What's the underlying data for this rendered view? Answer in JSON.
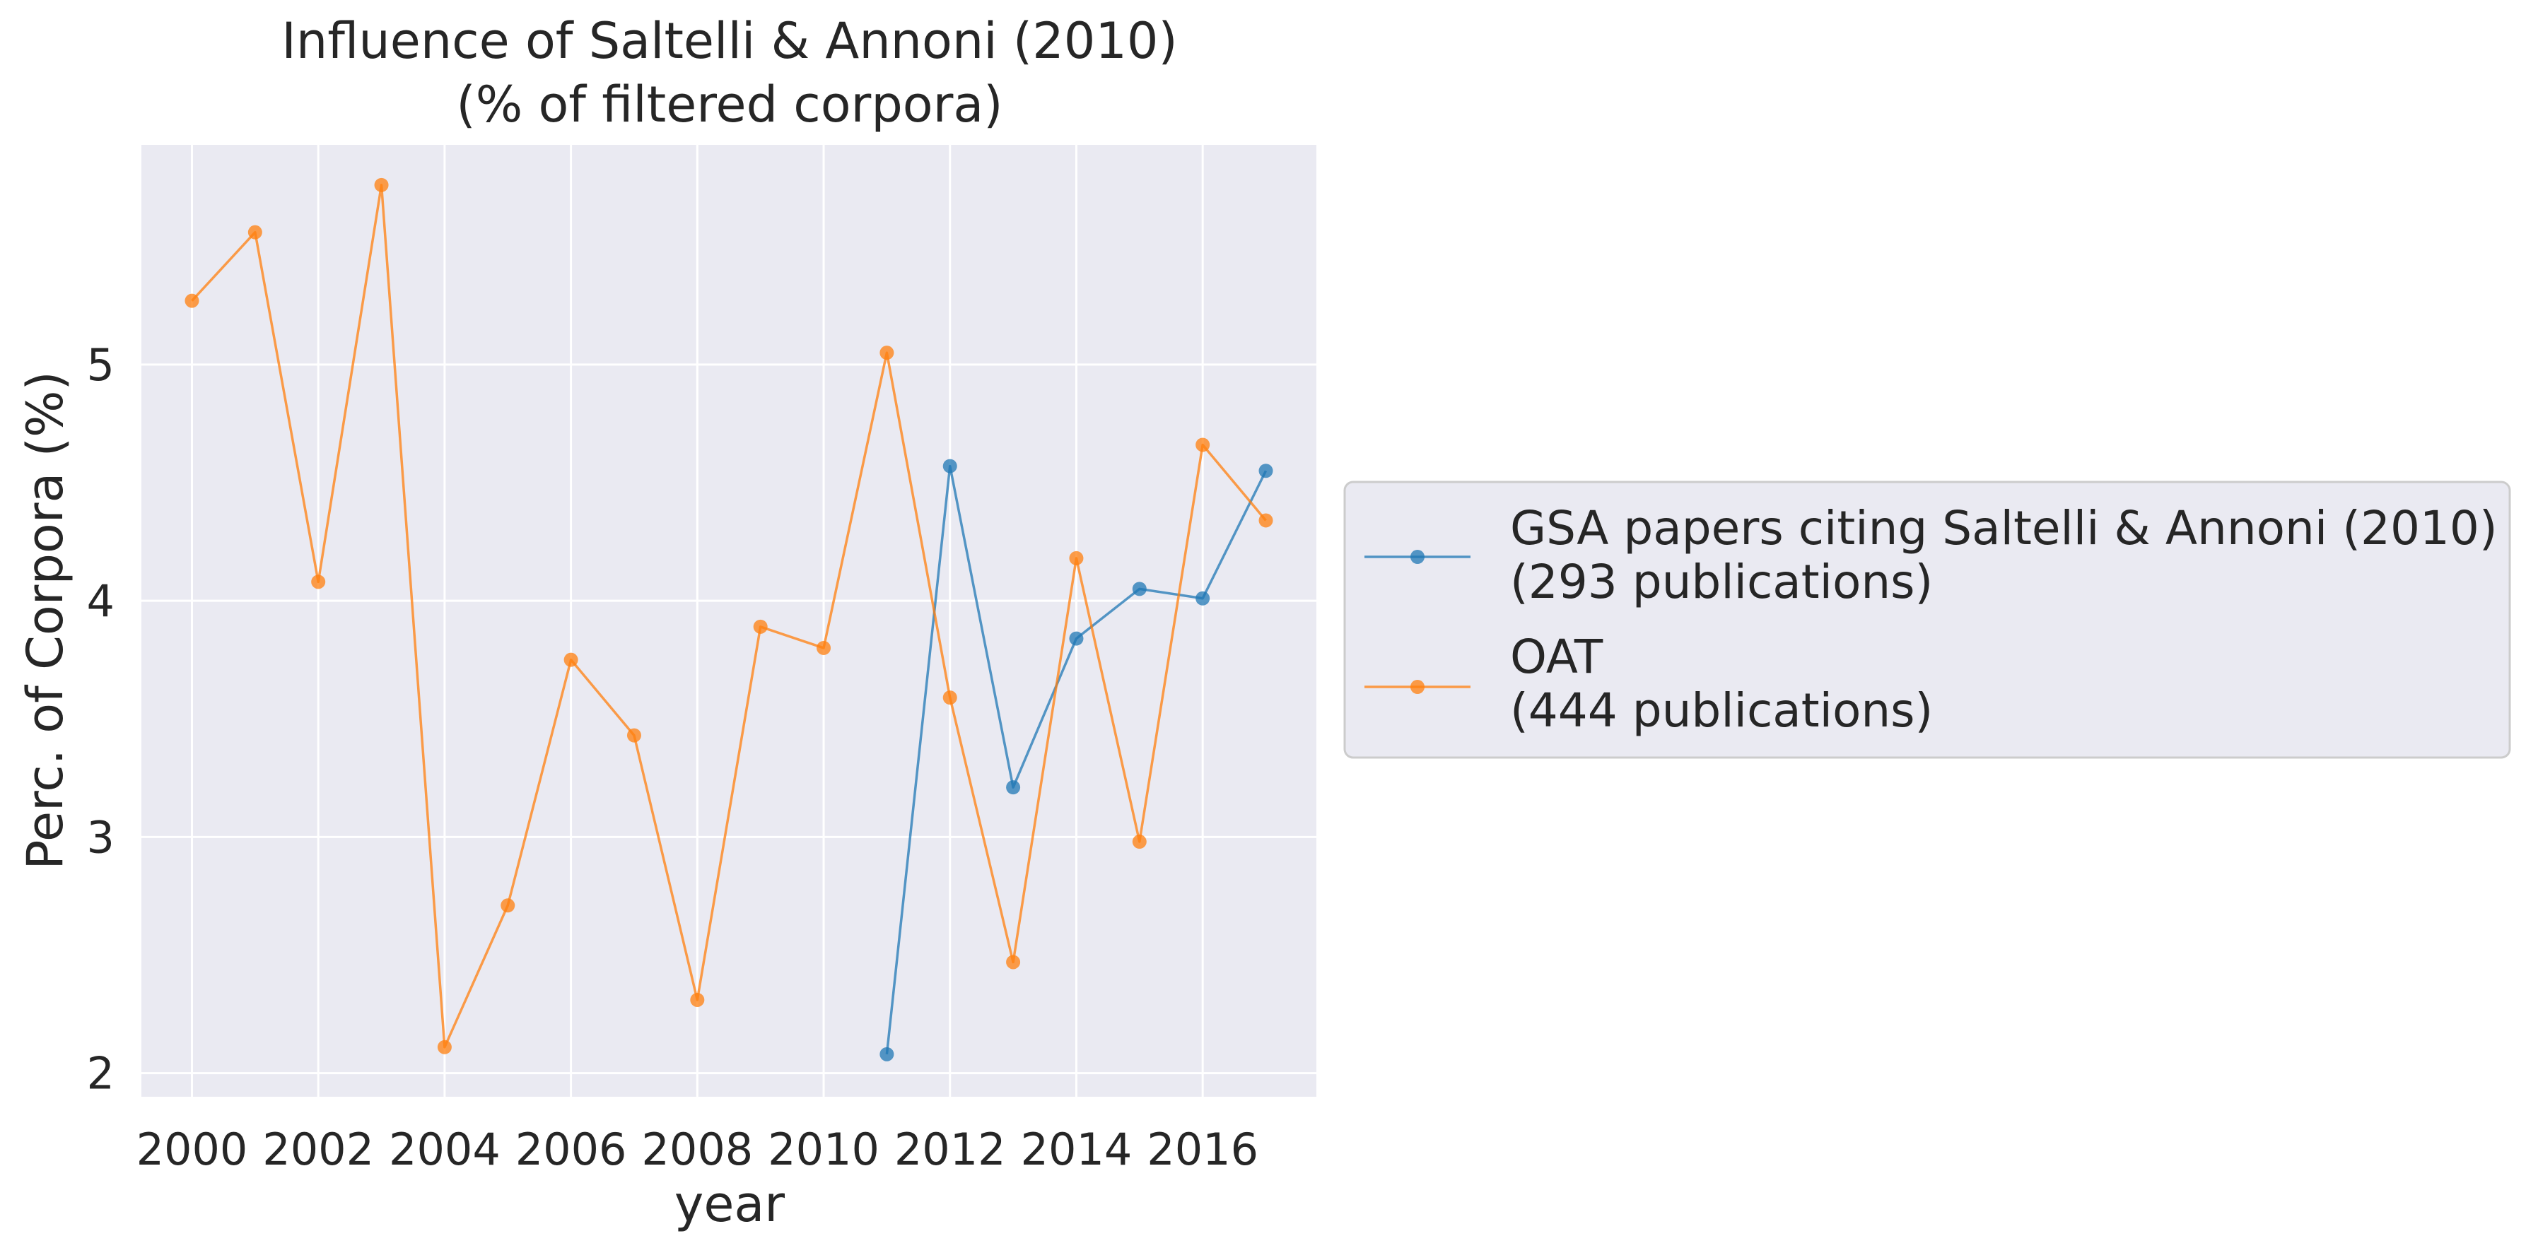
{
  "chart_data": {
    "type": "line",
    "title_line1": "Influence of Saltelli & Annoni (2010)",
    "title_line2": "(% of filtered corpora)",
    "xlabel": "year",
    "ylabel": "Perc. of Corpora (%)",
    "xlim": [
      1999.2,
      2017.8
    ],
    "ylim": [
      1.9,
      5.93
    ],
    "x_ticks": [
      2000,
      2002,
      2004,
      2006,
      2008,
      2010,
      2012,
      2014,
      2016
    ],
    "x_tick_labels": [
      "2000",
      "2002",
      "2004",
      "2006",
      "2008",
      "2010",
      "2012",
      "2014",
      "2016"
    ],
    "y_ticks": [
      2,
      3,
      4,
      5
    ],
    "y_tick_labels": [
      "2",
      "3",
      "4",
      "5"
    ],
    "grid": true,
    "legend_placement": "center-left outside plot",
    "plot_background": "#eaeaf2",
    "grid_color": "#ffffff",
    "series": [
      {
        "key": "gsa",
        "legend_line1": "GSA papers citing Saltelli & Annoni (2010)",
        "legend_line2": "(293 publications)",
        "color": "#1f77b4",
        "x": [
          2011,
          2012,
          2013,
          2014,
          2015,
          2016,
          2017
        ],
        "y": [
          2.08,
          4.57,
          3.21,
          3.84,
          4.05,
          4.01,
          4.55
        ]
      },
      {
        "key": "oat",
        "legend_line1": "OAT",
        "legend_line2": "(444 publications)",
        "color": "#ff7f0e",
        "x": [
          2000,
          2001,
          2002,
          2003,
          2004,
          2005,
          2006,
          2007,
          2008,
          2009,
          2010,
          2011,
          2012,
          2013,
          2014,
          2015,
          2016,
          2017
        ],
        "y": [
          5.27,
          5.56,
          4.08,
          5.76,
          2.11,
          2.71,
          3.75,
          3.43,
          2.31,
          3.89,
          3.8,
          5.05,
          3.59,
          2.47,
          4.18,
          2.98,
          4.66,
          4.34
        ]
      }
    ]
  }
}
